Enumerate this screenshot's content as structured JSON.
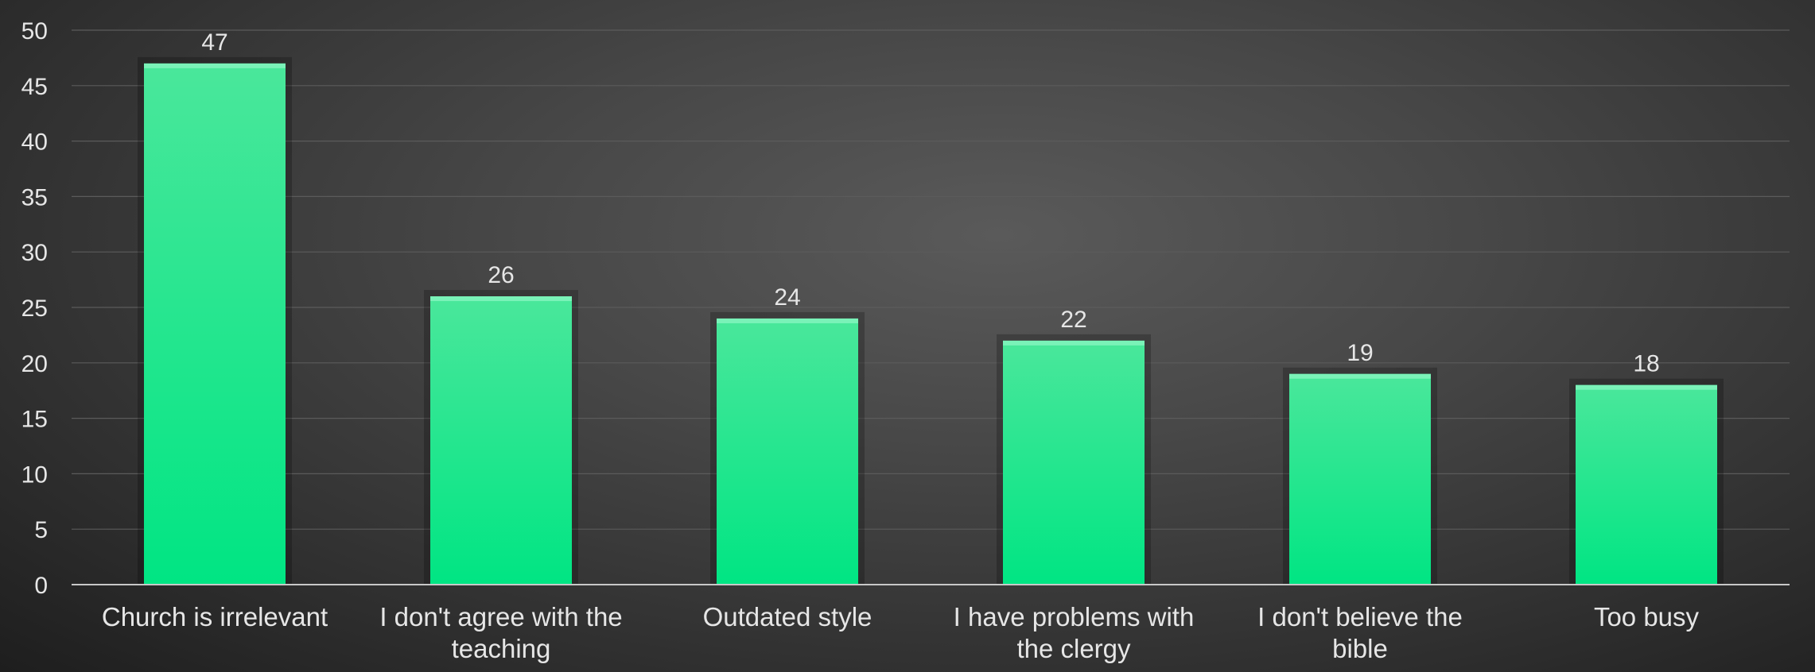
{
  "chart_data": {
    "type": "bar",
    "categories": [
      "Church is irrelevant",
      "I don't agree with the teaching",
      "Outdated style",
      "I have problems with the clergy",
      "I don't believe the bible",
      "Too busy"
    ],
    "category_label_lines": [
      [
        "Church is irrelevant"
      ],
      [
        "I don't agree with the",
        "teaching"
      ],
      [
        "Outdated style"
      ],
      [
        "I have problems with",
        "the clergy"
      ],
      [
        "I don't believe the",
        "bible"
      ],
      [
        "Too busy"
      ]
    ],
    "values": [
      47,
      26,
      24,
      22,
      19,
      18
    ],
    "ylim": [
      0,
      50
    ],
    "yticks": [
      0,
      5,
      10,
      15,
      20,
      25,
      30,
      35,
      40,
      45,
      50
    ],
    "grid": true,
    "legend": "none",
    "data_labels": true,
    "bar_color": "#0ee585",
    "bar_color_top": "#47e89a",
    "background_color": "#3c3c3c"
  }
}
